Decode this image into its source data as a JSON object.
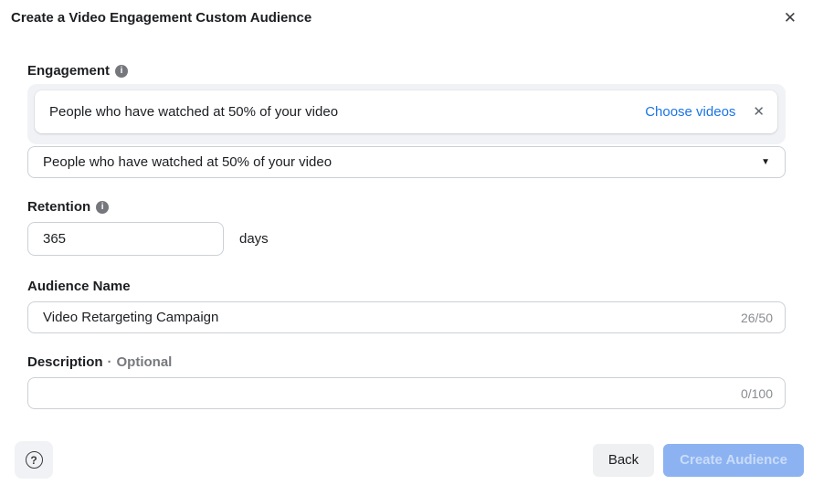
{
  "modal": {
    "title": "Create a Video Engagement Custom Audience"
  },
  "icons": {
    "close": "✕",
    "info": "i",
    "remove": "✕",
    "chevron_down": "▼",
    "help": "?"
  },
  "engagement": {
    "label": "Engagement",
    "card": {
      "text": "People who have watched at 50% of your video",
      "choose_videos_label": "Choose videos"
    },
    "dropdown": {
      "selected": "People who have watched at 50% of your video"
    }
  },
  "retention": {
    "label": "Retention",
    "value": "365",
    "unit": "days"
  },
  "audience_name": {
    "label": "Audience Name",
    "value": "Video Retargeting Campaign",
    "counter": "26/50"
  },
  "description": {
    "label": "Description",
    "separator": "·",
    "optional_label": "Optional",
    "value": "",
    "counter": "0/100"
  },
  "footer": {
    "back_label": "Back",
    "create_label": "Create Audience"
  },
  "colors": {
    "link_blue": "#1b74e4",
    "container_bg": "#f0f2f5",
    "input_border": "#ccd0d5",
    "muted_text": "#8a8d91",
    "primary_disabled_bg": "#8cb2f2",
    "primary_disabled_text": "#c9dcf9"
  }
}
